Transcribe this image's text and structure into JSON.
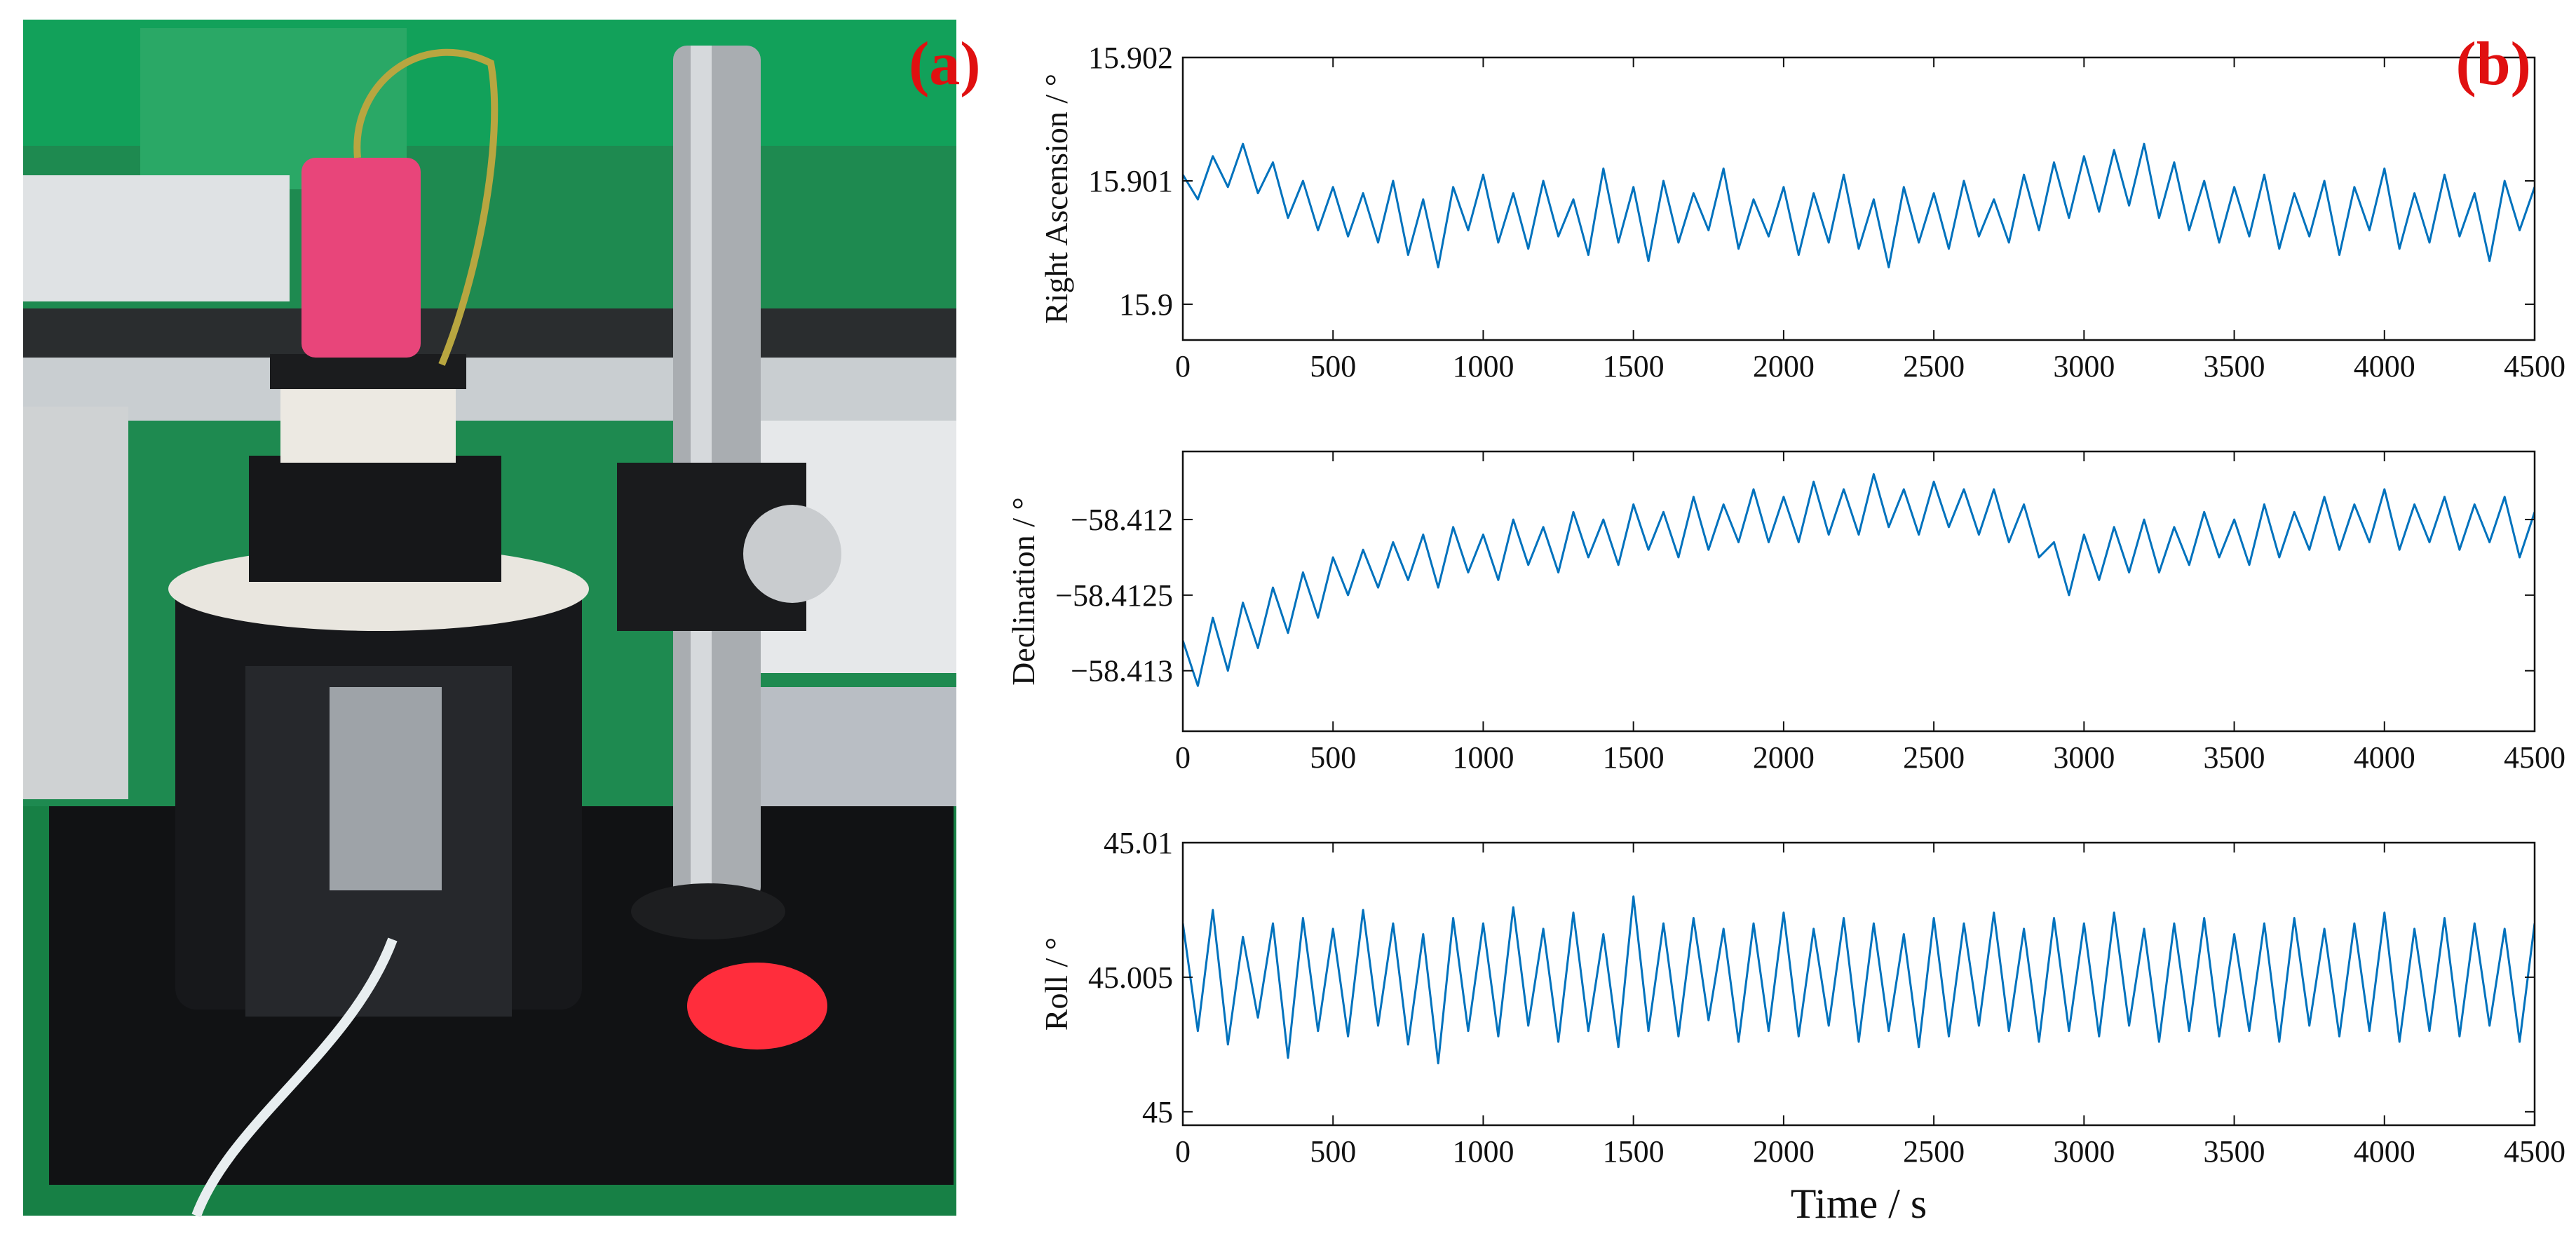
{
  "photo": {
    "label": "(a)"
  },
  "chart_data": [
    {
      "type": "line",
      "annotation": "(b)",
      "ylabel": "Right Ascension / °",
      "xlim": [
        0,
        4500
      ],
      "xticks": [
        0,
        500,
        1000,
        1500,
        2000,
        2500,
        3000,
        3500,
        4000,
        4500
      ],
      "ylim": [
        15.89971,
        15.902
      ],
      "yticks": [
        15.9,
        15.901,
        15.902
      ],
      "x": [
        0,
        50,
        100,
        150,
        200,
        250,
        300,
        350,
        400,
        450,
        500,
        550,
        600,
        650,
        700,
        750,
        800,
        850,
        900,
        950,
        1000,
        1050,
        1100,
        1150,
        1200,
        1250,
        1300,
        1350,
        1400,
        1450,
        1500,
        1550,
        1600,
        1650,
        1700,
        1750,
        1800,
        1850,
        1900,
        1950,
        2000,
        2050,
        2100,
        2150,
        2200,
        2250,
        2300,
        2350,
        2400,
        2450,
        2500,
        2550,
        2600,
        2650,
        2700,
        2750,
        2800,
        2850,
        2900,
        2950,
        3000,
        3050,
        3100,
        3150,
        3200,
        3250,
        3300,
        3350,
        3400,
        3450,
        3500,
        3550,
        3600,
        3650,
        3700,
        3750,
        3800,
        3850,
        3900,
        3950,
        4000,
        4050,
        4100,
        4150,
        4200,
        4250,
        4300,
        4350,
        4400,
        4450,
        4500
      ],
      "series": [
        {
          "color": "#0072bd",
          "values": [
            15.90105,
            15.90085,
            15.9012,
            15.90095,
            15.9013,
            15.9009,
            15.90115,
            15.9007,
            15.901,
            15.9006,
            15.90095,
            15.90055,
            15.9009,
            15.9005,
            15.901,
            15.9004,
            15.90085,
            15.9003,
            15.90095,
            15.9006,
            15.90105,
            15.9005,
            15.9009,
            15.90045,
            15.901,
            15.90055,
            15.90085,
            15.9004,
            15.9011,
            15.9005,
            15.90095,
            15.90035,
            15.901,
            15.9005,
            15.9009,
            15.9006,
            15.9011,
            15.90045,
            15.90085,
            15.90055,
            15.90095,
            15.9004,
            15.9009,
            15.9005,
            15.90105,
            15.90045,
            15.90085,
            15.9003,
            15.90095,
            15.9005,
            15.9009,
            15.90045,
            15.901,
            15.90055,
            15.90085,
            15.9005,
            15.90105,
            15.9006,
            15.90115,
            15.9007,
            15.9012,
            15.90075,
            15.90125,
            15.9008,
            15.9013,
            15.9007,
            15.90115,
            15.9006,
            15.901,
            15.9005,
            15.90095,
            15.90055,
            15.90105,
            15.90045,
            15.9009,
            15.90055,
            15.901,
            15.9004,
            15.90095,
            15.9006,
            15.9011,
            15.90045,
            15.9009,
            15.9005,
            15.90105,
            15.90055,
            15.9009,
            15.90035,
            15.901,
            15.9006,
            15.90095
          ]
        }
      ]
    },
    {
      "type": "line",
      "ylabel": "Declination / °",
      "xlim": [
        0,
        4500
      ],
      "xticks": [
        0,
        500,
        1000,
        1500,
        2000,
        2500,
        3000,
        3500,
        4000,
        4500
      ],
      "ylim": [
        -58.4134,
        -58.41155
      ],
      "yticks": [
        {
          "value": -58.413,
          "label": "−58.413"
        },
        {
          "value": -58.4125,
          "label": "−58.4125"
        },
        {
          "value": -58.412,
          "label": "−58.412"
        }
      ],
      "x": [
        0,
        50,
        100,
        150,
        200,
        250,
        300,
        350,
        400,
        450,
        500,
        550,
        600,
        650,
        700,
        750,
        800,
        850,
        900,
        950,
        1000,
        1050,
        1100,
        1150,
        1200,
        1250,
        1300,
        1350,
        1400,
        1450,
        1500,
        1550,
        1600,
        1650,
        1700,
        1750,
        1800,
        1850,
        1900,
        1950,
        2000,
        2050,
        2100,
        2150,
        2200,
        2250,
        2300,
        2350,
        2400,
        2450,
        2500,
        2550,
        2600,
        2650,
        2700,
        2750,
        2800,
        2850,
        2900,
        2950,
        3000,
        3050,
        3100,
        3150,
        3200,
        3250,
        3300,
        3350,
        3400,
        3450,
        3500,
        3550,
        3600,
        3650,
        3700,
        3750,
        3800,
        3850,
        3900,
        3950,
        4000,
        4050,
        4100,
        4150,
        4200,
        4250,
        4300,
        4350,
        4400,
        4450,
        4500
      ],
      "series": [
        {
          "color": "#0072bd",
          "values": [
            -58.4128,
            -58.4131,
            -58.41265,
            -58.413,
            -58.41255,
            -58.41285,
            -58.41245,
            -58.41275,
            -58.41235,
            -58.41265,
            -58.41225,
            -58.4125,
            -58.4122,
            -58.41245,
            -58.41215,
            -58.4124,
            -58.4121,
            -58.41245,
            -58.41205,
            -58.41235,
            -58.4121,
            -58.4124,
            -58.412,
            -58.4123,
            -58.41205,
            -58.41235,
            -58.41195,
            -58.41225,
            -58.412,
            -58.4123,
            -58.4119,
            -58.4122,
            -58.41195,
            -58.41225,
            -58.41185,
            -58.4122,
            -58.4119,
            -58.41215,
            -58.4118,
            -58.41215,
            -58.41185,
            -58.41215,
            -58.41175,
            -58.4121,
            -58.4118,
            -58.4121,
            -58.4117,
            -58.41205,
            -58.4118,
            -58.4121,
            -58.41175,
            -58.41205,
            -58.4118,
            -58.4121,
            -58.4118,
            -58.41215,
            -58.4119,
            -58.41225,
            -58.41215,
            -58.4125,
            -58.4121,
            -58.4124,
            -58.41205,
            -58.41235,
            -58.412,
            -58.41235,
            -58.41205,
            -58.4123,
            -58.41195,
            -58.41225,
            -58.412,
            -58.4123,
            -58.4119,
            -58.41225,
            -58.41195,
            -58.4122,
            -58.41185,
            -58.4122,
            -58.4119,
            -58.41215,
            -58.4118,
            -58.4122,
            -58.4119,
            -58.41215,
            -58.41185,
            -58.4122,
            -58.4119,
            -58.41215,
            -58.41185,
            -58.41225,
            -58.41195
          ]
        }
      ]
    },
    {
      "type": "line",
      "ylabel": "Roll / °",
      "xlabel": "Time / s",
      "xlim": [
        0,
        4500
      ],
      "xticks": [
        0,
        500,
        1000,
        1500,
        2000,
        2500,
        3000,
        3500,
        4000,
        4500
      ],
      "ylim": [
        44.9995,
        45.01
      ],
      "yticks": [
        45,
        45.005,
        45.01
      ],
      "x": [
        0,
        50,
        100,
        150,
        200,
        250,
        300,
        350,
        400,
        450,
        500,
        550,
        600,
        650,
        700,
        750,
        800,
        850,
        900,
        950,
        1000,
        1050,
        1100,
        1150,
        1200,
        1250,
        1300,
        1350,
        1400,
        1450,
        1500,
        1550,
        1600,
        1650,
        1700,
        1750,
        1800,
        1850,
        1900,
        1950,
        2000,
        2050,
        2100,
        2150,
        2200,
        2250,
        2300,
        2350,
        2400,
        2450,
        2500,
        2550,
        2600,
        2650,
        2700,
        2750,
        2800,
        2850,
        2900,
        2950,
        3000,
        3050,
        3100,
        3150,
        3200,
        3250,
        3300,
        3350,
        3400,
        3450,
        3500,
        3550,
        3600,
        3650,
        3700,
        3750,
        3800,
        3850,
        3900,
        3950,
        4000,
        4050,
        4100,
        4150,
        4200,
        4250,
        4300,
        4350,
        4400,
        4450,
        4500
      ],
      "series": [
        {
          "color": "#0072bd",
          "values": [
            45.007,
            45.003,
            45.0075,
            45.0025,
            45.0065,
            45.0035,
            45.007,
            45.002,
            45.0072,
            45.003,
            45.0068,
            45.0028,
            45.0075,
            45.0032,
            45.007,
            45.0025,
            45.0066,
            45.0018,
            45.0072,
            45.003,
            45.007,
            45.0028,
            45.0076,
            45.0032,
            45.0068,
            45.0026,
            45.0074,
            45.003,
            45.0066,
            45.0024,
            45.008,
            45.003,
            45.007,
            45.0028,
            45.0072,
            45.0034,
            45.0068,
            45.0026,
            45.007,
            45.003,
            45.0074,
            45.0028,
            45.0068,
            45.0032,
            45.0072,
            45.0026,
            45.007,
            45.003,
            45.0066,
            45.0024,
            45.0072,
            45.0028,
            45.007,
            45.0032,
            45.0074,
            45.003,
            45.0068,
            45.0026,
            45.0072,
            45.003,
            45.007,
            45.0028,
            45.0074,
            45.0032,
            45.0068,
            45.0026,
            45.007,
            45.003,
            45.0072,
            45.0028,
            45.0066,
            45.003,
            45.007,
            45.0026,
            45.0072,
            45.0032,
            45.0068,
            45.0028,
            45.007,
            45.003,
            45.0074,
            45.0026,
            45.0068,
            45.003,
            45.0072,
            45.0028,
            45.007,
            45.0032,
            45.0068,
            45.0026,
            45.007
          ]
        }
      ]
    }
  ]
}
